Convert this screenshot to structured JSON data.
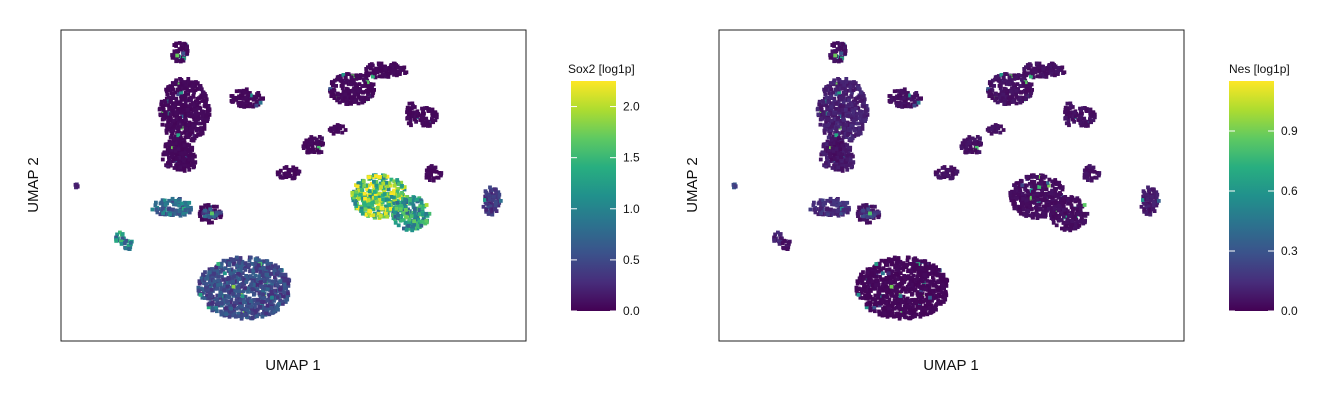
{
  "chart_data": [
    {
      "type": "scatter",
      "subtype": "hexbin-umap-embedding",
      "xlabel": "UMAP 1",
      "ylabel": "UMAP 2",
      "colorbar": {
        "title": "Sox2 [log1p]",
        "range": [
          0.0,
          2.25
        ],
        "ticks": [
          0.0,
          0.5,
          1.0,
          1.5,
          2.0
        ],
        "tick_labels": [
          "0.0",
          "0.5",
          "1.0",
          "1.5",
          "2.0"
        ],
        "colormap": "viridis"
      },
      "grid": false,
      "clusters": [
        {
          "cx": 0.266,
          "cy": 0.74,
          "rx": 0.054,
          "ry": 0.105,
          "value": 0.05
        },
        {
          "cx": 0.251,
          "cy": 0.6,
          "rx": 0.035,
          "ry": 0.05,
          "value": 0.05
        },
        {
          "cx": 0.268,
          "cy": 0.58,
          "rx": 0.022,
          "ry": 0.035,
          "value": 0.05
        },
        {
          "cx": 0.255,
          "cy": 0.93,
          "rx": 0.018,
          "ry": 0.035,
          "value": 0.05
        },
        {
          "cx": 0.25,
          "cy": 0.62,
          "rx": 0.017,
          "ry": 0.045,
          "value": 0.05
        },
        {
          "cx": 0.32,
          "cy": 0.41,
          "rx": 0.025,
          "ry": 0.03,
          "value": 0.05
        },
        {
          "cx": 0.4,
          "cy": 0.78,
          "rx": 0.035,
          "ry": 0.03,
          "value": 0.05
        },
        {
          "cx": 0.545,
          "cy": 0.63,
          "rx": 0.025,
          "ry": 0.03,
          "value": 0.05
        },
        {
          "cx": 0.625,
          "cy": 0.81,
          "rx": 0.05,
          "ry": 0.05,
          "value": 0.05
        },
        {
          "cx": 0.695,
          "cy": 0.87,
          "rx": 0.05,
          "ry": 0.025,
          "value": 0.05
        },
        {
          "cx": 0.755,
          "cy": 0.73,
          "rx": 0.012,
          "ry": 0.04,
          "value": 0.05
        },
        {
          "cx": 0.785,
          "cy": 0.72,
          "rx": 0.025,
          "ry": 0.03,
          "value": 0.05
        },
        {
          "cx": 0.8,
          "cy": 0.54,
          "rx": 0.018,
          "ry": 0.025,
          "value": 0.05
        },
        {
          "cx": 0.595,
          "cy": 0.68,
          "rx": 0.02,
          "ry": 0.015,
          "value": 0.05
        },
        {
          "cx": 0.49,
          "cy": 0.54,
          "rx": 0.025,
          "ry": 0.02,
          "value": 0.05
        },
        {
          "cx": 0.035,
          "cy": 0.5,
          "rx": 0.008,
          "ry": 0.008,
          "value": 0.2
        },
        {
          "cx": 0.685,
          "cy": 0.465,
          "rx": 0.06,
          "ry": 0.07,
          "value": 1.7
        },
        {
          "cx": 0.753,
          "cy": 0.41,
          "rx": 0.04,
          "ry": 0.055,
          "value": 1.2
        },
        {
          "cx": 0.24,
          "cy": 0.43,
          "rx": 0.045,
          "ry": 0.03,
          "value": 0.8
        },
        {
          "cx": 0.325,
          "cy": 0.41,
          "rx": 0.02,
          "ry": 0.015,
          "value": 0.6
        },
        {
          "cx": 0.125,
          "cy": 0.33,
          "rx": 0.012,
          "ry": 0.02,
          "value": 1.1
        },
        {
          "cx": 0.145,
          "cy": 0.31,
          "rx": 0.012,
          "ry": 0.015,
          "value": 1.0
        },
        {
          "cx": 0.926,
          "cy": 0.45,
          "rx": 0.02,
          "ry": 0.045,
          "value": 0.35
        },
        {
          "cx": 0.395,
          "cy": 0.17,
          "rx": 0.1,
          "ry": 0.1,
          "value": 0.5
        }
      ]
    },
    {
      "type": "scatter",
      "subtype": "hexbin-umap-embedding",
      "xlabel": "UMAP 1",
      "ylabel": "UMAP 2",
      "colorbar": {
        "title": "Nes [log1p]",
        "range": [
          0.0,
          1.15
        ],
        "ticks": [
          0.0,
          0.3,
          0.6,
          0.9
        ],
        "tick_labels": [
          "0.0",
          "0.3",
          "0.6",
          "0.9"
        ],
        "colormap": "viridis"
      },
      "grid": false,
      "clusters": [
        {
          "cx": 0.266,
          "cy": 0.74,
          "rx": 0.054,
          "ry": 0.105,
          "value": 0.1
        },
        {
          "cx": 0.251,
          "cy": 0.6,
          "rx": 0.035,
          "ry": 0.05,
          "value": 0.08
        },
        {
          "cx": 0.268,
          "cy": 0.58,
          "rx": 0.022,
          "ry": 0.035,
          "value": 0.08
        },
        {
          "cx": 0.255,
          "cy": 0.93,
          "rx": 0.018,
          "ry": 0.035,
          "value": 0.05
        },
        {
          "cx": 0.25,
          "cy": 0.62,
          "rx": 0.017,
          "ry": 0.045,
          "value": 0.05
        },
        {
          "cx": 0.32,
          "cy": 0.41,
          "rx": 0.025,
          "ry": 0.03,
          "value": 0.05
        },
        {
          "cx": 0.4,
          "cy": 0.78,
          "rx": 0.035,
          "ry": 0.03,
          "value": 0.05
        },
        {
          "cx": 0.545,
          "cy": 0.63,
          "rx": 0.025,
          "ry": 0.03,
          "value": 0.05
        },
        {
          "cx": 0.625,
          "cy": 0.81,
          "rx": 0.05,
          "ry": 0.05,
          "value": 0.05
        },
        {
          "cx": 0.695,
          "cy": 0.87,
          "rx": 0.05,
          "ry": 0.025,
          "value": 0.05
        },
        {
          "cx": 0.755,
          "cy": 0.73,
          "rx": 0.012,
          "ry": 0.04,
          "value": 0.05
        },
        {
          "cx": 0.785,
          "cy": 0.72,
          "rx": 0.025,
          "ry": 0.03,
          "value": 0.05
        },
        {
          "cx": 0.8,
          "cy": 0.54,
          "rx": 0.018,
          "ry": 0.025,
          "value": 0.05
        },
        {
          "cx": 0.595,
          "cy": 0.68,
          "rx": 0.02,
          "ry": 0.015,
          "value": 0.05
        },
        {
          "cx": 0.49,
          "cy": 0.54,
          "rx": 0.025,
          "ry": 0.02,
          "value": 0.05
        },
        {
          "cx": 0.035,
          "cy": 0.5,
          "rx": 0.008,
          "ry": 0.008,
          "value": 0.25
        },
        {
          "cx": 0.685,
          "cy": 0.465,
          "rx": 0.06,
          "ry": 0.07,
          "value": 0.04
        },
        {
          "cx": 0.753,
          "cy": 0.41,
          "rx": 0.04,
          "ry": 0.055,
          "value": 0.04
        },
        {
          "cx": 0.24,
          "cy": 0.43,
          "rx": 0.045,
          "ry": 0.03,
          "value": 0.15
        },
        {
          "cx": 0.325,
          "cy": 0.41,
          "rx": 0.02,
          "ry": 0.015,
          "value": 0.2
        },
        {
          "cx": 0.125,
          "cy": 0.33,
          "rx": 0.012,
          "ry": 0.02,
          "value": 0.1
        },
        {
          "cx": 0.145,
          "cy": 0.31,
          "rx": 0.012,
          "ry": 0.015,
          "value": 0.05
        },
        {
          "cx": 0.926,
          "cy": 0.45,
          "rx": 0.02,
          "ry": 0.045,
          "value": 0.08
        },
        {
          "cx": 0.395,
          "cy": 0.17,
          "rx": 0.1,
          "ry": 0.1,
          "value": 0.02
        }
      ]
    }
  ]
}
